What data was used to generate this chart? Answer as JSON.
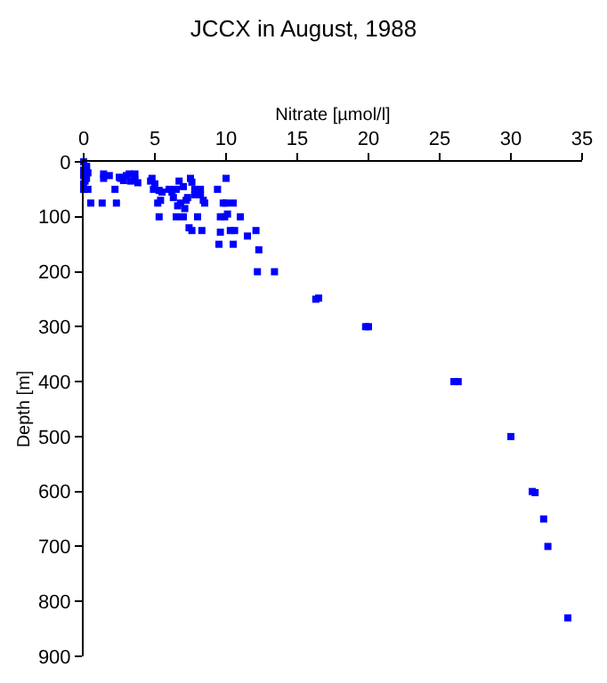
{
  "chart_data": {
    "type": "scatter",
    "title": "JCCX in August, 1988",
    "xlabel": "Nitrate [µmol/l]",
    "ylabel": "Depth [m]",
    "xlim": [
      0,
      35
    ],
    "xticks": [
      0,
      5,
      10,
      15,
      20,
      25,
      30,
      35
    ],
    "ylim": [
      900,
      0
    ],
    "yticks": [
      0,
      100,
      200,
      300,
      400,
      500,
      600,
      700,
      800,
      900
    ],
    "marker": "square",
    "series": [
      {
        "color": "#0000ff",
        "x": [
          0,
          0.2,
          0,
          0.3,
          0,
          0.2,
          0.1,
          0,
          0,
          0.3,
          0.5,
          0.2,
          1.4,
          1.4,
          1.8,
          2.2,
          1.3,
          2.3,
          2.5,
          2.6,
          3,
          3.3,
          3.2,
          3.6,
          3.8,
          3.6,
          2.8,
          4.8,
          4.7,
          5.0,
          4.9,
          5.3,
          5.5,
          5.2,
          5.4,
          5.3,
          6,
          6.3,
          6.2,
          6.5,
          6.7,
          7,
          6.8,
          6.6,
          6.5,
          7.1,
          7.2,
          7,
          7.3,
          7.5,
          7.6,
          7.4,
          7.6,
          7.8,
          7.8,
          8,
          8.2,
          8.2,
          8.4,
          8.3,
          8.5,
          9.4,
          9.6,
          9.8,
          9.6,
          9.5,
          9.9,
          10,
          10,
          10.1,
          10.3,
          10.5,
          10.6,
          10.5,
          11,
          11.5,
          12.1,
          12.3,
          12.2,
          13.4,
          16.3,
          16.5,
          19.8,
          20,
          26,
          26.3,
          30,
          31.5,
          31.7,
          32.3,
          32.6,
          34
        ],
        "values": [
          0,
          10,
          15,
          20,
          25,
          30,
          35,
          40,
          50,
          50,
          75,
          8,
          22,
          30,
          25,
          50,
          75,
          75,
          28,
          30,
          25,
          35,
          22,
          22,
          38,
          33,
          34,
          30,
          35,
          40,
          50,
          52,
          55,
          75,
          70,
          100,
          50,
          65,
          55,
          50,
          35,
          45,
          75,
          80,
          100,
          85,
          70,
          100,
          65,
          30,
          37,
          120,
          125,
          60,
          50,
          100,
          50,
          60,
          70,
          125,
          75,
          50,
          100,
          75,
          128,
          150,
          100,
          30,
          75,
          95,
          125,
          75,
          125,
          150,
          100,
          135,
          125,
          160,
          200,
          200,
          250,
          248,
          300,
          300,
          400,
          400,
          500,
          600,
          602,
          650,
          700,
          830
        ]
      }
    ]
  }
}
